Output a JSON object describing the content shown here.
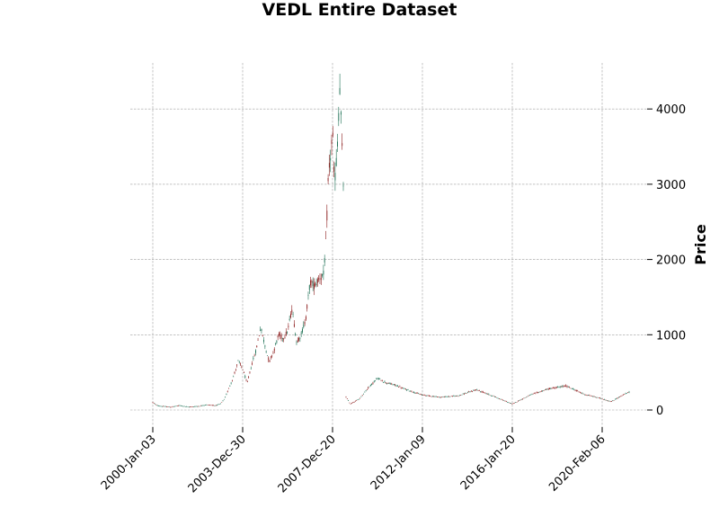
{
  "chart_data": {
    "type": "candlestick",
    "title": "VEDL Entire Dataset",
    "ylabel": "Price",
    "xlabel": "",
    "ylim": [
      -200,
      4600
    ],
    "xlim": [
      -0.1,
      5.3
    ],
    "grid": true,
    "y_axis_position": "right",
    "y_ticks": [
      0,
      1000,
      2000,
      3000,
      4000
    ],
    "x_ticks": [
      {
        "label": "2000-Jan-03",
        "pos": 0
      },
      {
        "label": "2003-Dec-30",
        "pos": 1
      },
      {
        "label": "2007-Dec-20",
        "pos": 2
      },
      {
        "label": "2012-Jan-09",
        "pos": 3
      },
      {
        "label": "2016-Jan-20",
        "pos": 4
      },
      {
        "label": "2020-Feb-06",
        "pos": 5
      }
    ],
    "colors": {
      "up": "#1a6e52",
      "down": "#8b1a1a",
      "wick": "#333333"
    },
    "series": [
      {
        "segment": 1,
        "x": [
          0.0,
          0.05,
          0.1,
          0.2,
          0.3,
          0.4,
          0.5,
          0.6,
          0.7,
          0.75,
          0.8,
          0.85,
          0.9,
          0.95,
          1.0,
          1.05,
          1.1,
          1.15,
          1.2,
          1.25,
          1.28,
          1.3,
          1.35,
          1.4,
          1.45,
          1.5,
          1.55,
          1.6,
          1.65,
          1.7,
          1.75,
          1.8,
          1.85,
          1.9,
          1.93,
          1.95,
          2.0,
          2.02,
          2.05,
          2.08,
          2.1,
          2.12
        ],
        "close": [
          100,
          60,
          50,
          40,
          60,
          40,
          50,
          70,
          60,
          80,
          150,
          300,
          450,
          650,
          550,
          350,
          600,
          800,
          1100,
          850,
          700,
          650,
          800,
          1000,
          950,
          1050,
          1350,
          900,
          1000,
          1200,
          1700,
          1650,
          1750,
          1800,
          2300,
          3000,
          3700,
          3000,
          3400,
          4300,
          3700,
          3000
        ]
      },
      {
        "segment": 2,
        "x": [
          2.15,
          2.2,
          2.3,
          2.4,
          2.5,
          2.6,
          2.7,
          2.8,
          2.9,
          3.0,
          3.2,
          3.4,
          3.6,
          3.8,
          4.0,
          4.2,
          4.4,
          4.6,
          4.8,
          5.0,
          5.1,
          5.2,
          5.3
        ],
        "close": [
          170,
          80,
          150,
          300,
          420,
          360,
          330,
          280,
          240,
          200,
          170,
          190,
          270,
          180,
          80,
          200,
          280,
          320,
          210,
          150,
          110,
          180,
          240
        ]
      }
    ]
  }
}
